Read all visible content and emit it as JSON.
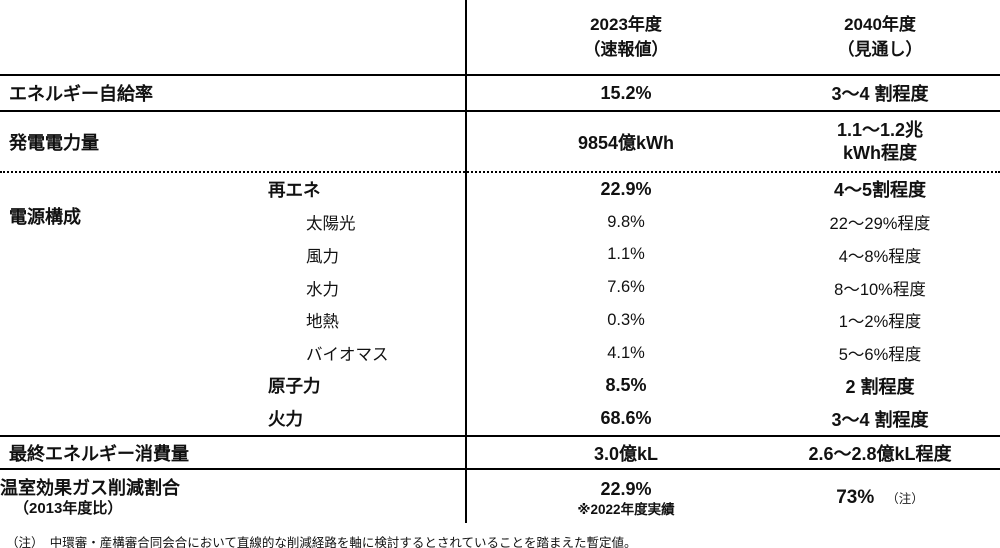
{
  "colors": {
    "text": "#111111",
    "line": "#000000",
    "background": "#ffffff"
  },
  "header": {
    "year_2023": {
      "line1": "2023年度",
      "line2": "（速報値）"
    },
    "year_2040": {
      "line1": "2040年度",
      "line2": "（見通し）"
    }
  },
  "rows": {
    "self_sufficiency": {
      "label": "エネルギー自給率",
      "v2023": "15.2%",
      "v2040": "3～4 割程度"
    },
    "generation": {
      "label": "発電電力量",
      "v2023": "9854億kWh",
      "v2040_line1": "1.1～1.2兆",
      "v2040_line2": "kWh程度"
    },
    "power_mix": {
      "label": "電源構成",
      "items": [
        {
          "label": "再エネ",
          "v2023": "22.9%",
          "v2040": "4～5割程度",
          "emphasis": true
        },
        {
          "label": "太陽光",
          "v2023": "9.8%",
          "v2040": "22～29%程度",
          "emphasis": false
        },
        {
          "label": "風力",
          "v2023": "1.1%",
          "v2040": "4～8%程度",
          "emphasis": false
        },
        {
          "label": "水力",
          "v2023": "7.6%",
          "v2040": "8～10%程度",
          "emphasis": false
        },
        {
          "label": "地熱",
          "v2023": "0.3%",
          "v2040": "1～2%程度",
          "emphasis": false
        },
        {
          "label": "バイオマス",
          "v2023": "4.1%",
          "v2040": "5～6%程度",
          "emphasis": false
        },
        {
          "label": "原子力",
          "v2023": "8.5%",
          "v2040": "2 割程度",
          "emphasis": true
        },
        {
          "label": "火力",
          "v2023": "68.6%",
          "v2040": "3～4 割程度",
          "emphasis": true
        }
      ]
    },
    "final_consumption": {
      "label": "最終エネルギー消費量",
      "v2023": "3.0億kL",
      "v2040": "2.6～2.8億kL程度"
    },
    "ghg_reduction": {
      "label": "温室効果ガス削減割合",
      "label_sub": "（2013年度比）",
      "v2023": "22.9%",
      "v2023_note": "※2022年度実績",
      "v2040": "73%",
      "v2040_note": "（注）"
    }
  },
  "footnote": "（注）　中環審・産構審合同会合において直線的な削減経路を軸に検討するとされていることを踏まえた暫定値。"
}
